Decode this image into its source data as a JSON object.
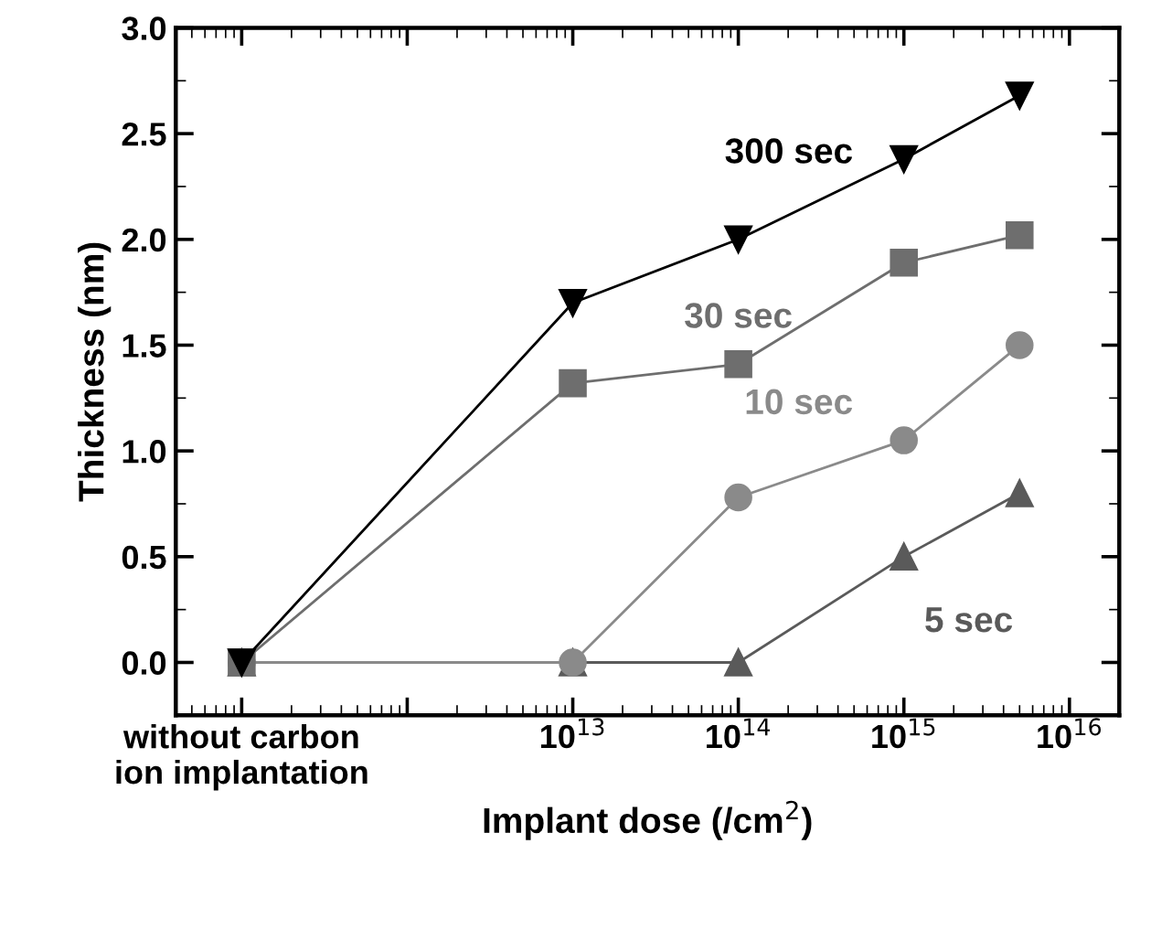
{
  "chart_data": {
    "type": "line",
    "xlabel": "Implant dose (/cm$^{2}$)",
    "ylabel": "Thickness (nm)",
    "log": "x",
    "x": [
      100000000000.0,
      10000000000000.0,
      100000000000000.0,
      1000000000000000.0,
      5000000000000000.0
    ],
    "xlim": [
      40000000000.0,
      2e+16
    ],
    "xticks": [
      {
        "value": 100000000000.0,
        "label": "without carbon\nion implantation"
      },
      {
        "value": 1000000000000.0,
        "label": null
      },
      {
        "value": 10000000000000.0,
        "label": "10$^{13}$"
      },
      {
        "value": 100000000000000.0,
        "label": "10$^{14}$"
      },
      {
        "value": 1000000000000000.0,
        "label": "10$^{15}$"
      },
      {
        "value": 1e+16,
        "label": "10$^{16}$"
      }
    ],
    "ylim": [
      -0.25,
      3.0
    ],
    "yticks": [
      {
        "value": 0,
        "label": "0.0"
      },
      0.5,
      {
        "value": 1,
        "label": "1.0"
      },
      1.5,
      {
        "value": 2,
        "label": "2.0"
      },
      2.5,
      {
        "value": 3,
        "label": "3.0"
      }
    ],
    "grid": false,
    "legend": false,
    "series": [
      {
        "name": "300 sec",
        "color": "#000000",
        "marker": "triangle_down",
        "values": [
          0,
          1.7,
          2.0,
          2.38,
          2.68
        ]
      },
      {
        "name": "30 sec",
        "color": "#6e6e6e",
        "marker": "square",
        "values": [
          0,
          1.32,
          1.41,
          1.89,
          2.02
        ]
      },
      {
        "name": "10 sec",
        "color": "#8a8a8a",
        "marker": "circle",
        "values": [
          0,
          0,
          0.78,
          1.05,
          1.5
        ]
      },
      {
        "name": "5 sec",
        "color": "#5a5a5a",
        "marker": "triangle",
        "values": [
          0,
          0,
          0,
          0.5,
          0.8
        ]
      }
    ]
  }
}
